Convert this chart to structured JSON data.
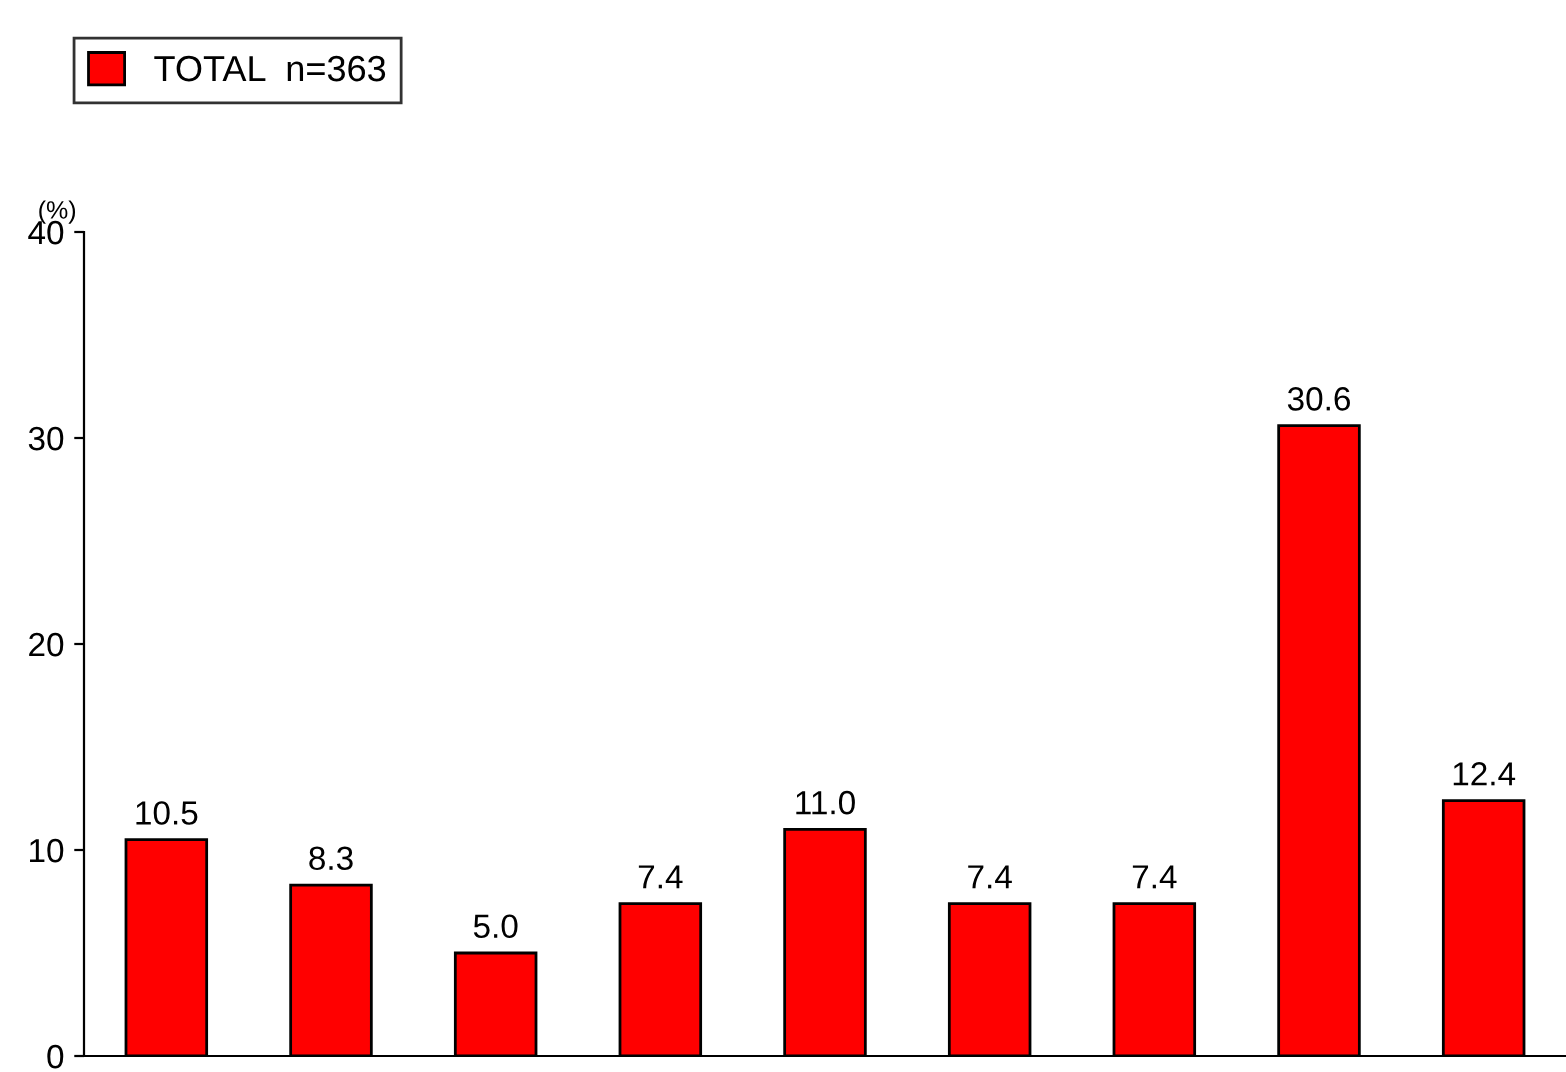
{
  "chart_data": {
    "type": "bar",
    "ylabel": "(%)",
    "categories": [
      null,
      null,
      null,
      null,
      null,
      null,
      null,
      null,
      null
    ],
    "series": [
      {
        "name": "TOTAL  n=363",
        "color": "#ff0000",
        "values": [
          10.5,
          8.3,
          5.0,
          7.4,
          11.0,
          7.4,
          7.4,
          30.6,
          12.4
        ],
        "value_labels": [
          "10.5",
          "8.3",
          "5.0",
          "7.4",
          "11.0",
          "7.4",
          "7.4",
          "30.6",
          "12.4"
        ]
      }
    ],
    "ylim": [
      0,
      40
    ],
    "yticks": [
      0,
      10,
      20,
      30,
      40
    ],
    "grid": false,
    "legend": "top left"
  }
}
